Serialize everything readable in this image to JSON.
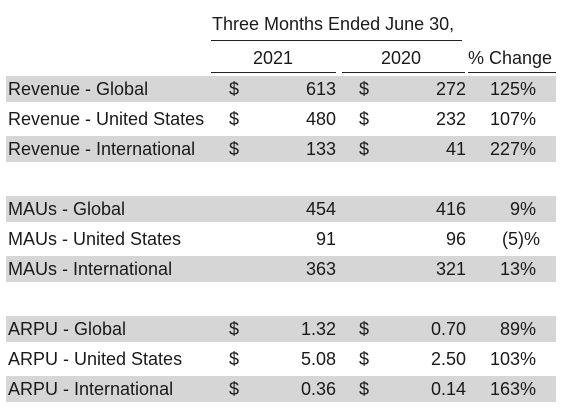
{
  "header": {
    "period": "Three Months Ended June 30,",
    "col_2021": "2021",
    "col_2020": "2020",
    "col_change": "% Change"
  },
  "rows": [
    {
      "label": "Revenue - Global",
      "cur1": "$",
      "v2021": "613",
      "cur2": "$",
      "v2020": "272",
      "change": "125%",
      "shaded": true
    },
    {
      "label": "Revenue - United States",
      "cur1": "$",
      "v2021": "480",
      "cur2": "$",
      "v2020": "232",
      "change": "107%",
      "shaded": false
    },
    {
      "label": "Revenue - International",
      "cur1": "$",
      "v2021": "133",
      "cur2": "$",
      "v2020": "41",
      "change": "227%",
      "shaded": true
    },
    {
      "label": "MAUs - Global",
      "cur1": "",
      "v2021": "454",
      "cur2": "",
      "v2020": "416",
      "change": "9%",
      "shaded": true
    },
    {
      "label": "MAUs - United States",
      "cur1": "",
      "v2021": "91",
      "cur2": "",
      "v2020": "96",
      "change": "(5)%",
      "shaded": false
    },
    {
      "label": "MAUs - International",
      "cur1": "",
      "v2021": "363",
      "cur2": "",
      "v2020": "321",
      "change": "13%",
      "shaded": true
    },
    {
      "label": "ARPU - Global",
      "cur1": "$",
      "v2021": "1.32",
      "cur2": "$",
      "v2020": "0.70",
      "change": "89%",
      "shaded": true
    },
    {
      "label": "ARPU - United States",
      "cur1": "$",
      "v2021": "5.08",
      "cur2": "$",
      "v2020": "2.50",
      "change": "103%",
      "shaded": false
    },
    {
      "label": "ARPU - International",
      "cur1": "$",
      "v2021": "0.36",
      "cur2": "$",
      "v2020": "0.14",
      "change": "163%",
      "shaded": true
    }
  ]
}
